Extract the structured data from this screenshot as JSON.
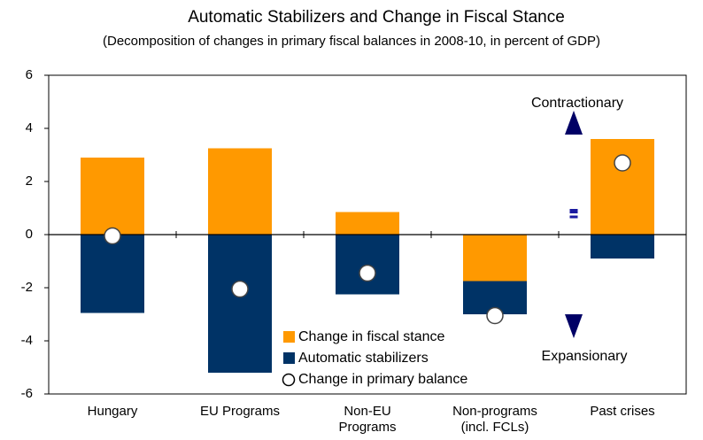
{
  "chart_data": {
    "type": "bar",
    "stacked": true,
    "title": "Automatic Stabilizers and Change in Fiscal Stance",
    "subtitle": "(Decomposition of changes in primary fiscal balances in 2008-10,  in percent of GDP)",
    "categories": [
      "Hungary",
      "EU Programs",
      "Non-EU\nPrograms",
      "Non-programs\n(incl. FCLs)",
      "Past crises"
    ],
    "series": [
      {
        "name": "Change in fiscal stance",
        "type": "bar",
        "color": "#ff9900",
        "values": [
          2.9,
          3.25,
          0.85,
          -1.75,
          3.6
        ]
      },
      {
        "name": "Automatic stabilizers",
        "type": "bar",
        "color": "#003366",
        "values": [
          -2.95,
          -5.2,
          -2.25,
          -1.25,
          -0.9
        ]
      },
      {
        "name": "Change in primary balance",
        "type": "scatter",
        "color": "#ffffff",
        "values": [
          -0.05,
          -2.05,
          -1.45,
          -3.05,
          2.7
        ]
      }
    ],
    "ylim": [
      -6,
      6
    ],
    "yticks": [
      -6,
      -4,
      -2,
      0,
      2,
      4,
      6
    ],
    "annotations": [
      "Contractionary",
      "Expansionary"
    ]
  }
}
